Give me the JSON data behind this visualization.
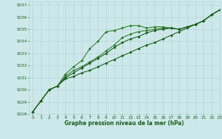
{
  "title": "Graphe pression niveau de la mer (hPa)",
  "bg_color": "#cce8e8",
  "grid_color": "#b0d0d0",
  "line_color_dark": "#1a5c1a",
  "line_color_mid": "#2e7d2e",
  "xlim": [
    -0.5,
    23
  ],
  "ylim": [
    1028,
    1037.3
  ],
  "yticks": [
    1028,
    1029,
    1030,
    1031,
    1032,
    1033,
    1034,
    1035,
    1036,
    1037
  ],
  "xticks": [
    0,
    1,
    2,
    3,
    4,
    5,
    6,
    7,
    8,
    9,
    10,
    11,
    12,
    13,
    14,
    15,
    16,
    17,
    18,
    19,
    20,
    21,
    22,
    23
  ],
  "series": [
    [
      1028.2,
      1029.1,
      1030.0,
      1030.3,
      1030.9,
      1031.1,
      1031.4,
      1031.6,
      1031.9,
      1032.2,
      1032.5,
      1032.8,
      1033.1,
      1033.4,
      1033.7,
      1033.9,
      1034.2,
      1034.5,
      1034.8,
      1035.1,
      1035.4,
      1035.7,
      1036.2,
      1036.6
    ],
    [
      1028.2,
      1029.1,
      1030.0,
      1030.3,
      1031.3,
      1031.9,
      1032.4,
      1033.4,
      1034.0,
      1034.8,
      1034.9,
      1035.1,
      1035.3,
      1035.3,
      1035.1,
      1035.2,
      1035.2,
      1035.1,
      1035.0,
      1035.2,
      1035.4,
      1035.7,
      1036.2,
      1036.6
    ],
    [
      1028.2,
      1029.1,
      1030.0,
      1030.3,
      1031.1,
      1031.6,
      1031.9,
      1032.3,
      1032.7,
      1033.2,
      1033.7,
      1034.3,
      1034.6,
      1034.8,
      1034.9,
      1035.0,
      1035.1,
      1035.1,
      1035.0,
      1035.2,
      1035.4,
      1035.7,
      1036.2,
      1036.6
    ],
    [
      1028.2,
      1029.1,
      1030.0,
      1030.3,
      1031.0,
      1031.4,
      1031.8,
      1032.2,
      1032.6,
      1033.0,
      1033.5,
      1033.9,
      1034.2,
      1034.4,
      1034.7,
      1034.9,
      1035.0,
      1035.1,
      1035.0,
      1035.2,
      1035.4,
      1035.7,
      1036.2,
      1036.6
    ]
  ],
  "marker": "D",
  "markersize": 1.8,
  "linewidth": 0.8
}
